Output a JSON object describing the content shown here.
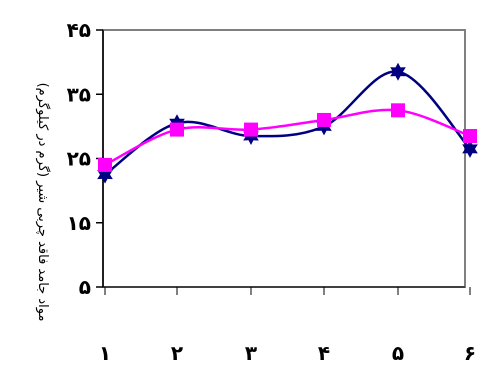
{
  "chart_data": {
    "type": "line",
    "title": "",
    "xlabel": "",
    "ylabel": "مواد جامد فاقد چربی شیر (گرم در کیلوگرم)",
    "x": [
      1,
      2,
      3,
      4,
      5,
      6
    ],
    "x_tick_labels": [
      "۱",
      "۲",
      "۳",
      "۴",
      "۵",
      "۶"
    ],
    "ylim": [
      5,
      45
    ],
    "y_ticks": [
      5,
      15,
      25,
      35,
      45
    ],
    "y_tick_labels": [
      "۵",
      "۱۵",
      "۲۵",
      "۳۵",
      "۴۵"
    ],
    "grid": false,
    "smooth": true,
    "series": [
      {
        "values": [
          22.5,
          30.5,
          28.5,
          30.0,
          38.5,
          26.5
        ],
        "color": "#000080",
        "marker": "star"
      },
      {
        "values": [
          24.0,
          29.5,
          29.5,
          31.0,
          32.5,
          28.5
        ],
        "color": "#ff00ff",
        "marker": "square"
      }
    ]
  }
}
